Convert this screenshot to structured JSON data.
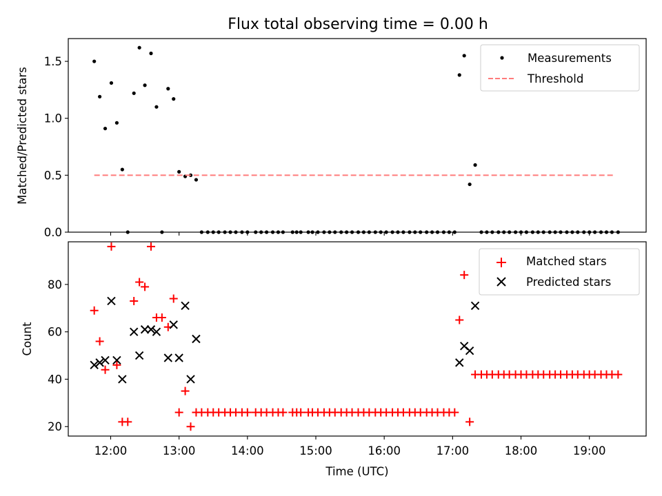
{
  "figure": {
    "title": "Flux total observing time = 0.00 h"
  },
  "chart_data": [
    {
      "type": "scatter",
      "ylabel": "Matched/Predicted stars",
      "xlabel": "",
      "xlim_hours": [
        11.38,
        19.83
      ],
      "ylim": [
        0.0,
        1.7
      ],
      "yticks": [
        0.0,
        0.5,
        1.0,
        1.5
      ],
      "ytick_labels": [
        "0.0",
        "0.5",
        "1.0",
        "1.5"
      ],
      "legend_position": "top-right",
      "series": [
        {
          "name": "Measurements",
          "marker": "dot",
          "color": "#000000",
          "points": [
            [
              11.76,
              1.5
            ],
            [
              11.84,
              1.19
            ],
            [
              11.92,
              0.91
            ],
            [
              12.01,
              1.31
            ],
            [
              12.09,
              0.96
            ],
            [
              12.17,
              0.55
            ],
            [
              12.25,
              0.0
            ],
            [
              12.34,
              1.22
            ],
            [
              12.42,
              1.62
            ],
            [
              12.5,
              1.29
            ],
            [
              12.59,
              1.57
            ],
            [
              12.67,
              1.1
            ],
            [
              12.75,
              0.0
            ],
            [
              12.84,
              1.26
            ],
            [
              12.92,
              1.17
            ],
            [
              13.0,
              0.53
            ],
            [
              13.09,
              0.49
            ],
            [
              13.17,
              0.5
            ],
            [
              13.25,
              0.46
            ],
            [
              13.33,
              0.0
            ],
            [
              13.42,
              0.0
            ],
            [
              13.5,
              0.0
            ],
            [
              13.58,
              0.0
            ],
            [
              13.67,
              0.0
            ],
            [
              13.75,
              0.0
            ],
            [
              13.83,
              0.0
            ],
            [
              13.92,
              0.0
            ],
            [
              14.0,
              0.0
            ],
            [
              14.12,
              0.0
            ],
            [
              14.2,
              0.0
            ],
            [
              14.28,
              0.0
            ],
            [
              14.37,
              0.0
            ],
            [
              14.45,
              0.0
            ],
            [
              14.52,
              0.0
            ],
            [
              14.66,
              0.0
            ],
            [
              14.72,
              0.0
            ],
            [
              14.78,
              0.0
            ],
            [
              14.89,
              0.0
            ],
            [
              14.95,
              0.0
            ],
            [
              15.03,
              0.0
            ],
            [
              15.12,
              0.0
            ],
            [
              15.2,
              0.0
            ],
            [
              15.28,
              0.0
            ],
            [
              15.37,
              0.0
            ],
            [
              15.45,
              0.0
            ],
            [
              15.53,
              0.0
            ],
            [
              15.62,
              0.0
            ],
            [
              15.7,
              0.0
            ],
            [
              15.78,
              0.0
            ],
            [
              15.87,
              0.0
            ],
            [
              15.95,
              0.0
            ],
            [
              16.03,
              0.0
            ],
            [
              16.12,
              0.0
            ],
            [
              16.2,
              0.0
            ],
            [
              16.28,
              0.0
            ],
            [
              16.37,
              0.0
            ],
            [
              16.45,
              0.0
            ],
            [
              16.53,
              0.0
            ],
            [
              16.62,
              0.0
            ],
            [
              16.7,
              0.0
            ],
            [
              16.78,
              0.0
            ],
            [
              16.87,
              0.0
            ],
            [
              16.95,
              0.0
            ],
            [
              17.03,
              0.0
            ],
            [
              17.1,
              1.38
            ],
            [
              17.17,
              1.55
            ],
            [
              17.25,
              0.42
            ],
            [
              17.33,
              0.59
            ],
            [
              17.42,
              0.0
            ],
            [
              17.5,
              0.0
            ],
            [
              17.58,
              0.0
            ],
            [
              17.67,
              0.0
            ],
            [
              17.75,
              0.0
            ],
            [
              17.83,
              0.0
            ],
            [
              17.92,
              0.0
            ],
            [
              18.0,
              0.0
            ],
            [
              18.08,
              0.0
            ],
            [
              18.17,
              0.0
            ],
            [
              18.25,
              0.0
            ],
            [
              18.33,
              0.0
            ],
            [
              18.42,
              0.0
            ],
            [
              18.5,
              0.0
            ],
            [
              18.58,
              0.0
            ],
            [
              18.67,
              0.0
            ],
            [
              18.75,
              0.0
            ],
            [
              18.83,
              0.0
            ],
            [
              18.92,
              0.0
            ],
            [
              19.0,
              0.0
            ],
            [
              19.08,
              0.0
            ],
            [
              19.17,
              0.0
            ],
            [
              19.25,
              0.0
            ],
            [
              19.33,
              0.0
            ],
            [
              19.42,
              0.0
            ]
          ]
        },
        {
          "name": "Threshold",
          "marker": "dashed-line",
          "color": "#ff7b7b",
          "points": [
            [
              11.76,
              0.5
            ],
            [
              19.38,
              0.5
            ]
          ]
        }
      ]
    },
    {
      "type": "scatter",
      "ylabel": "Count",
      "xlabel": "Time (UTC)",
      "xlim_hours": [
        11.38,
        19.83
      ],
      "ylim": [
        16,
        98
      ],
      "yticks": [
        20,
        40,
        60,
        80
      ],
      "ytick_labels": [
        "20",
        "40",
        "60",
        "80"
      ],
      "xticks_hours": [
        12,
        13,
        14,
        15,
        16,
        17,
        18,
        19
      ],
      "xtick_labels": [
        "12:00",
        "13:00",
        "14:00",
        "15:00",
        "16:00",
        "17:00",
        "18:00",
        "19:00"
      ],
      "legend_position": "top-right",
      "series": [
        {
          "name": "Matched stars",
          "marker": "plus",
          "color": "#ff0000",
          "points": [
            [
              11.76,
              69
            ],
            [
              11.84,
              56
            ],
            [
              11.92,
              44
            ],
            [
              12.01,
              96
            ],
            [
              12.09,
              46
            ],
            [
              12.17,
              22
            ],
            [
              12.25,
              22
            ],
            [
              12.34,
              73
            ],
            [
              12.42,
              81
            ],
            [
              12.5,
              79
            ],
            [
              12.59,
              96
            ],
            [
              12.67,
              66
            ],
            [
              12.75,
              66
            ],
            [
              12.84,
              62
            ],
            [
              12.92,
              74
            ],
            [
              13.0,
              26
            ],
            [
              13.09,
              35
            ],
            [
              13.17,
              20
            ],
            [
              13.25,
              26
            ],
            [
              13.33,
              26
            ],
            [
              13.42,
              26
            ],
            [
              13.5,
              26
            ],
            [
              13.58,
              26
            ],
            [
              13.67,
              26
            ],
            [
              13.75,
              26
            ],
            [
              13.83,
              26
            ],
            [
              13.92,
              26
            ],
            [
              14.0,
              26
            ],
            [
              14.12,
              26
            ],
            [
              14.2,
              26
            ],
            [
              14.28,
              26
            ],
            [
              14.37,
              26
            ],
            [
              14.45,
              26
            ],
            [
              14.52,
              26
            ],
            [
              14.66,
              26
            ],
            [
              14.72,
              26
            ],
            [
              14.78,
              26
            ],
            [
              14.89,
              26
            ],
            [
              14.95,
              26
            ],
            [
              15.03,
              26
            ],
            [
              15.12,
              26
            ],
            [
              15.2,
              26
            ],
            [
              15.28,
              26
            ],
            [
              15.37,
              26
            ],
            [
              15.45,
              26
            ],
            [
              15.53,
              26
            ],
            [
              15.62,
              26
            ],
            [
              15.7,
              26
            ],
            [
              15.78,
              26
            ],
            [
              15.87,
              26
            ],
            [
              15.95,
              26
            ],
            [
              16.03,
              26
            ],
            [
              16.12,
              26
            ],
            [
              16.2,
              26
            ],
            [
              16.28,
              26
            ],
            [
              16.37,
              26
            ],
            [
              16.45,
              26
            ],
            [
              16.53,
              26
            ],
            [
              16.62,
              26
            ],
            [
              16.7,
              26
            ],
            [
              16.78,
              26
            ],
            [
              16.87,
              26
            ],
            [
              16.95,
              26
            ],
            [
              17.03,
              26
            ],
            [
              17.1,
              65
            ],
            [
              17.17,
              84
            ],
            [
              17.25,
              22
            ],
            [
              17.33,
              42
            ],
            [
              17.42,
              42
            ],
            [
              17.5,
              42
            ],
            [
              17.58,
              42
            ],
            [
              17.67,
              42
            ],
            [
              17.75,
              42
            ],
            [
              17.83,
              42
            ],
            [
              17.92,
              42
            ],
            [
              18.0,
              42
            ],
            [
              18.08,
              42
            ],
            [
              18.17,
              42
            ],
            [
              18.25,
              42
            ],
            [
              18.33,
              42
            ],
            [
              18.42,
              42
            ],
            [
              18.5,
              42
            ],
            [
              18.58,
              42
            ],
            [
              18.67,
              42
            ],
            [
              18.75,
              42
            ],
            [
              18.83,
              42
            ],
            [
              18.92,
              42
            ],
            [
              19.0,
              42
            ],
            [
              19.08,
              42
            ],
            [
              19.17,
              42
            ],
            [
              19.25,
              42
            ],
            [
              19.33,
              42
            ],
            [
              19.42,
              42
            ]
          ]
        },
        {
          "name": "Predicted stars",
          "marker": "x",
          "color": "#000000",
          "points": [
            [
              11.76,
              46
            ],
            [
              11.84,
              47
            ],
            [
              11.92,
              48
            ],
            [
              12.01,
              73
            ],
            [
              12.09,
              48
            ],
            [
              12.17,
              40
            ],
            [
              12.34,
              60
            ],
            [
              12.42,
              50
            ],
            [
              12.5,
              61
            ],
            [
              12.59,
              61
            ],
            [
              12.67,
              60
            ],
            [
              12.84,
              49
            ],
            [
              12.92,
              63
            ],
            [
              13.0,
              49
            ],
            [
              13.09,
              71
            ],
            [
              13.17,
              40
            ],
            [
              13.25,
              57
            ],
            [
              17.1,
              47
            ],
            [
              17.17,
              54
            ],
            [
              17.25,
              52
            ],
            [
              17.33,
              71
            ]
          ]
        }
      ]
    }
  ]
}
